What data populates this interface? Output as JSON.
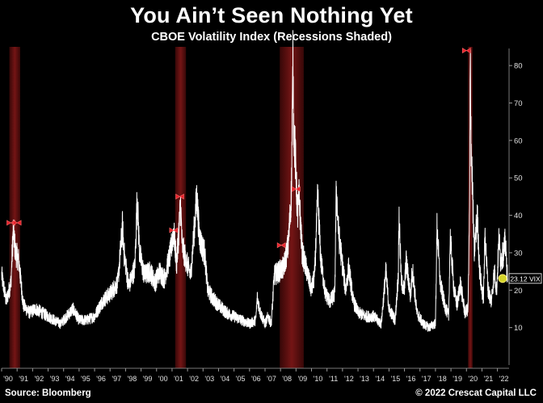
{
  "header": {
    "title": "You Ain’t Seen Nothing Yet",
    "subtitle": "CBOE Volatility Index (Recessions Shaded)"
  },
  "footer": {
    "source": "Source: Bloomberg",
    "copyright": "© 2022 Crescat Capital LLC"
  },
  "colors": {
    "background": "#000000",
    "line": "#ffffff",
    "recession_shade": "#6b1212",
    "marker": "#e8202a",
    "last_value_marker": "#d4d42a"
  },
  "chart_data": {
    "type": "line",
    "title": "CBOE Volatility Index (Recessions Shaded)",
    "xlabel": "",
    "ylabel": "",
    "xlim": [
      1990.0,
      2022.75
    ],
    "ylim": [
      0,
      85
    ],
    "grid": false,
    "y_axis_position": "right",
    "x_ticks": [
      "'90",
      "'91",
      "'92",
      "'93",
      "'94",
      "'95",
      "'96",
      "'97",
      "'98",
      "'99",
      "'00",
      "'01",
      "'02",
      "'03",
      "'04",
      "'05",
      "'06",
      "'07",
      "'08",
      "'09",
      "'10",
      "'11",
      "'12",
      "'13",
      "'14",
      "'15",
      "'16",
      "'17",
      "'18",
      "'19",
      "'20",
      "'21",
      "'22"
    ],
    "y_ticks": [
      "10",
      "20",
      "30",
      "40",
      "50",
      "60",
      "70",
      "80"
    ],
    "recessions": [
      {
        "start": 1990.5,
        "end": 1991.2
      },
      {
        "start": 2001.2,
        "end": 2001.9
      },
      {
        "start": 2007.95,
        "end": 2009.5
      },
      {
        "start": 2020.1,
        "end": 2020.4
      }
    ],
    "markers": [
      {
        "x": 1990.6,
        "y": 38
      },
      {
        "x": 1991.0,
        "y": 38
      },
      {
        "x": 2001.1,
        "y": 36
      },
      {
        "x": 2001.5,
        "y": 45
      },
      {
        "x": 2008.05,
        "y": 32
      },
      {
        "x": 2009.0,
        "y": 47
      },
      {
        "x": 2020.0,
        "y": 84
      }
    ],
    "last_value": {
      "x": 2022.65,
      "y": 23.12,
      "label": "23.12 VIX"
    },
    "series": [
      {
        "name": "VIX",
        "x": [
          1990.0,
          1990.3,
          1990.6,
          1990.75,
          1990.9,
          1991.1,
          1991.4,
          1991.8,
          1992.2,
          1992.6,
          1993.0,
          1993.4,
          1993.8,
          1994.2,
          1994.6,
          1995.0,
          1995.5,
          1996.0,
          1996.5,
          1997.0,
          1997.5,
          1997.8,
          1997.9,
          1998.2,
          1998.6,
          1998.75,
          1998.9,
          1999.2,
          1999.6,
          1999.9,
          2000.2,
          2000.5,
          2000.9,
          2001.1,
          2001.3,
          2001.55,
          2001.65,
          2001.9,
          2002.2,
          2002.5,
          2002.6,
          2002.75,
          2002.9,
          2003.1,
          2003.3,
          2003.6,
          2004.0,
          2004.5,
          2005.0,
          2005.5,
          2006.0,
          2006.4,
          2006.5,
          2006.7,
          2007.0,
          2007.2,
          2007.4,
          2007.6,
          2007.9,
          2008.2,
          2008.5,
          2008.7,
          2008.8,
          2008.85,
          2008.95,
          2009.1,
          2009.2,
          2009.4,
          2009.7,
          2010.0,
          2010.2,
          2010.4,
          2010.6,
          2010.9,
          2011.2,
          2011.5,
          2011.6,
          2011.75,
          2011.9,
          2012.2,
          2012.4,
          2012.7,
          2013.0,
          2013.5,
          2014.0,
          2014.5,
          2014.8,
          2015.0,
          2015.4,
          2015.6,
          2015.65,
          2015.8,
          2016.0,
          2016.1,
          2016.4,
          2016.5,
          2016.8,
          2017.2,
          2017.6,
          2017.9,
          2018.0,
          2018.1,
          2018.3,
          2018.6,
          2018.85,
          2018.95,
          2019.2,
          2019.4,
          2019.6,
          2019.9,
          2020.1,
          2020.2,
          2020.25,
          2020.3,
          2020.5,
          2020.7,
          2020.85,
          2021.0,
          2021.1,
          2021.2,
          2021.4,
          2021.6,
          2021.8,
          2021.95,
          2022.1,
          2022.2,
          2022.4,
          2022.5,
          2022.65
        ],
        "values": [
          24,
          17,
          22,
          36,
          30,
          28,
          16,
          14,
          15,
          14,
          13,
          12,
          11,
          13,
          15,
          12,
          12,
          13,
          17,
          19,
          22,
          37,
          30,
          21,
          26,
          45,
          30,
          24,
          25,
          22,
          25,
          23,
          30,
          36,
          27,
          43,
          32,
          28,
          24,
          40,
          45,
          35,
          32,
          30,
          20,
          18,
          16,
          14,
          13,
          12,
          11,
          12,
          18,
          14,
          11,
          13,
          11,
          24,
          25,
          26,
          32,
          46,
          80,
          64,
          56,
          40,
          45,
          30,
          25,
          20,
          24,
          45,
          28,
          19,
          17,
          19,
          47,
          35,
          30,
          20,
          26,
          17,
          14,
          13,
          13,
          11,
          25,
          15,
          12,
          24,
          40,
          22,
          20,
          28,
          18,
          26,
          14,
          11,
          10,
          11,
          11,
          37,
          22,
          16,
          13,
          34,
          20,
          16,
          22,
          14,
          15,
          40,
          84,
          60,
          30,
          40,
          25,
          20,
          18,
          35,
          20,
          17,
          25,
          20,
          34,
          28,
          30,
          33,
          23.12
        ]
      }
    ]
  }
}
